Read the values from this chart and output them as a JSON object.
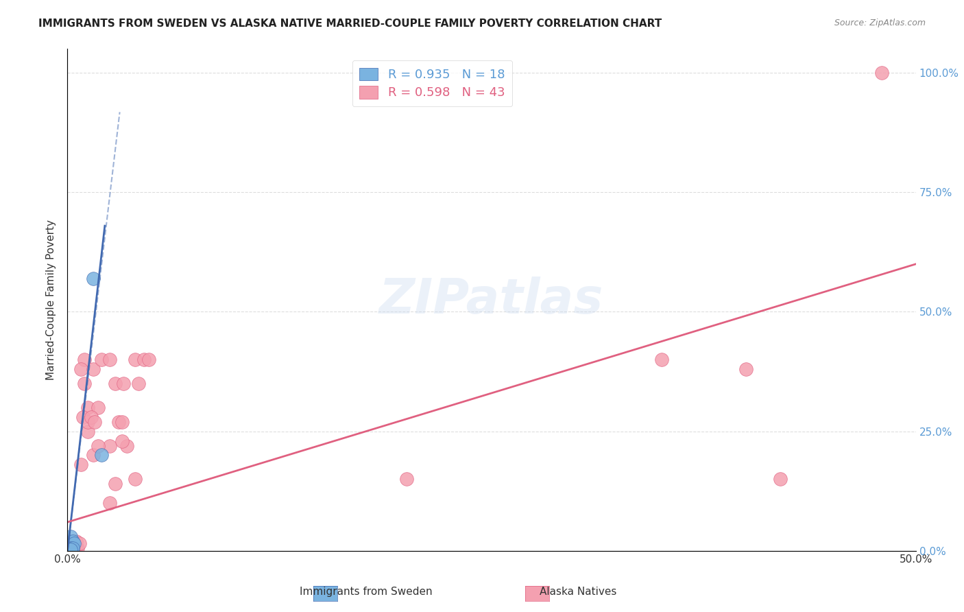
{
  "title": "IMMIGRANTS FROM SWEDEN VS ALASKA NATIVE MARRIED-COUPLE FAMILY POVERTY CORRELATION CHART",
  "source": "Source: ZipAtlas.com",
  "xlabel_bottom": "",
  "ylabel": "Married-Couple Family Poverty",
  "xmin": 0.0,
  "xmax": 0.5,
  "ymin": 0.0,
  "ymax": 1.05,
  "x_ticks": [
    0.0,
    0.05,
    0.1,
    0.15,
    0.2,
    0.25,
    0.3,
    0.35,
    0.4,
    0.45,
    0.5
  ],
  "x_tick_labels": [
    "0.0%",
    "",
    "",
    "",
    "",
    "",
    "",
    "",
    "",
    "",
    "50.0%"
  ],
  "y_tick_labels_right": [
    "0.0%",
    "25.0%",
    "50.0%",
    "75.0%",
    "100.0%"
  ],
  "y_ticks_right": [
    0.0,
    0.25,
    0.5,
    0.75,
    1.0
  ],
  "legend_R1": "R = 0.935",
  "legend_N1": "N = 18",
  "legend_R2": "R = 0.598",
  "legend_N2": "N = 43",
  "legend_label1": "Immigrants from Sweden",
  "legend_label2": "Alaska Natives",
  "color_blue": "#7ab3e0",
  "color_pink": "#f4a0b0",
  "color_blue_dark": "#4169b0",
  "color_pink_dark": "#e06080",
  "trendline_blue_color": "#4169b0",
  "trendline_pink_color": "#e06080",
  "watermark": "ZIPatlas",
  "sweden_points": [
    [
      0.001,
      0.01
    ],
    [
      0.002,
      0.01
    ],
    [
      0.001,
      0.005
    ],
    [
      0.003,
      0.005
    ],
    [
      0.002,
      0.005
    ],
    [
      0.001,
      0.008
    ],
    [
      0.003,
      0.01
    ],
    [
      0.002,
      0.015
    ],
    [
      0.001,
      0.02
    ],
    [
      0.002,
      0.03
    ],
    [
      0.003,
      0.02
    ],
    [
      0.004,
      0.015
    ],
    [
      0.002,
      0.005
    ],
    [
      0.001,
      0.003
    ],
    [
      0.003,
      0.005
    ],
    [
      0.002,
      0.002
    ],
    [
      0.02,
      0.2
    ],
    [
      0.015,
      0.57
    ]
  ],
  "alaska_points": [
    [
      0.002,
      0.01
    ],
    [
      0.003,
      0.005
    ],
    [
      0.004,
      0.005
    ],
    [
      0.005,
      0.005
    ],
    [
      0.006,
      0.005
    ],
    [
      0.003,
      0.01
    ],
    [
      0.005,
      0.02
    ],
    [
      0.007,
      0.015
    ],
    [
      0.008,
      0.18
    ],
    [
      0.01,
      0.35
    ],
    [
      0.01,
      0.4
    ],
    [
      0.008,
      0.38
    ],
    [
      0.012,
      0.3
    ],
    [
      0.015,
      0.38
    ],
    [
      0.015,
      0.2
    ],
    [
      0.018,
      0.3
    ],
    [
      0.012,
      0.25
    ],
    [
      0.009,
      0.28
    ],
    [
      0.012,
      0.27
    ],
    [
      0.014,
      0.28
    ],
    [
      0.016,
      0.27
    ],
    [
      0.02,
      0.4
    ],
    [
      0.025,
      0.4
    ],
    [
      0.025,
      0.22
    ],
    [
      0.018,
      0.22
    ],
    [
      0.025,
      0.1
    ],
    [
      0.028,
      0.14
    ],
    [
      0.03,
      0.27
    ],
    [
      0.032,
      0.27
    ],
    [
      0.028,
      0.35
    ],
    [
      0.033,
      0.35
    ],
    [
      0.04,
      0.4
    ],
    [
      0.035,
      0.22
    ],
    [
      0.032,
      0.23
    ],
    [
      0.04,
      0.15
    ],
    [
      0.042,
      0.35
    ],
    [
      0.045,
      0.4
    ],
    [
      0.048,
      0.4
    ],
    [
      0.2,
      0.15
    ],
    [
      0.35,
      0.4
    ],
    [
      0.4,
      0.38
    ],
    [
      0.42,
      0.15
    ],
    [
      0.48,
      1.0
    ]
  ],
  "blue_trendline_x": [
    0.0,
    0.022
  ],
  "blue_trendline_y": [
    0.0,
    0.68
  ],
  "pink_trendline_x": [
    0.0,
    0.5
  ],
  "pink_trendline_y": [
    0.06,
    0.6
  ]
}
